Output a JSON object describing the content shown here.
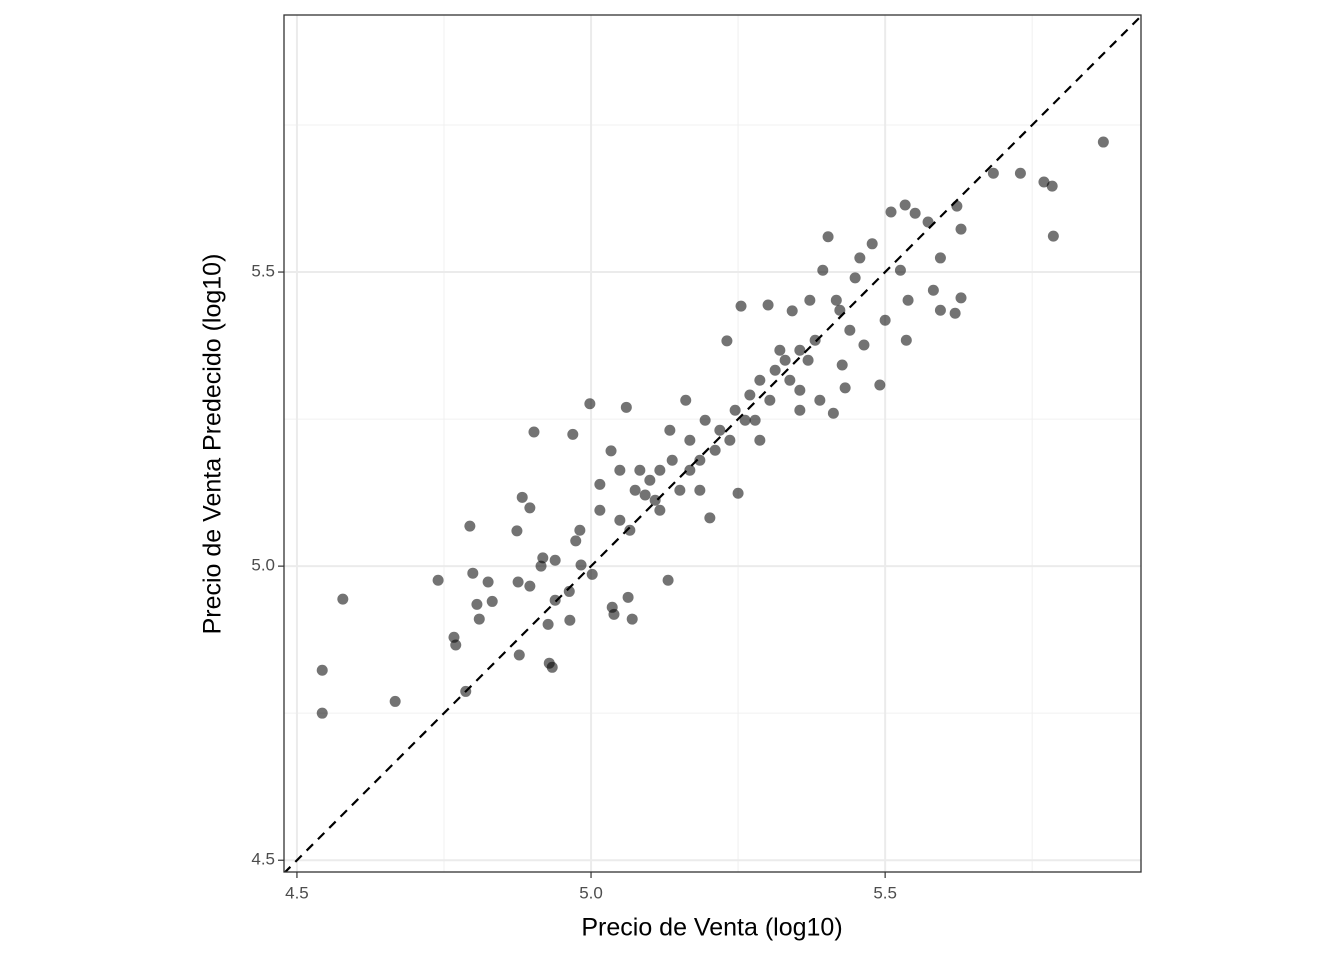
{
  "chart_data": {
    "type": "scatter",
    "x_label": "Precio de Venta (log10)",
    "y_label": "Precio de Venta Predecido (log10)",
    "xlim": [
      4.478,
      5.935
    ],
    "ylim": [
      4.48,
      5.937
    ],
    "xticks": [
      4.5,
      {
        "value": 5,
        "label": "5.0"
      },
      5.5
    ],
    "yticks": [
      4.5,
      {
        "value": 5,
        "label": "5.0"
      },
      5.5
    ],
    "xminorticks": [
      4.75,
      5.25,
      5.75
    ],
    "yminorticks": [
      4.75,
      5.25,
      5.75
    ],
    "grid": true,
    "color": "#000000",
    "opacity": 0.55,
    "abline": {
      "intercept": 0,
      "slope": 1,
      "style": "dashed"
    },
    "x": [
      4.543,
      4.543,
      4.578,
      4.667,
      4.74,
      4.767,
      4.77,
      4.787,
      4.794,
      4.799,
      4.806,
      4.81,
      4.825,
      4.832,
      4.874,
      4.876,
      4.878,
      4.883,
      4.896,
      4.903,
      4.896,
      4.915,
      4.918,
      4.927,
      4.929,
      4.934,
      4.939,
      4.939,
      4.963,
      4.964,
      4.969,
      4.974,
      4.983,
      4.998,
      5.002,
      5.015,
      5.034,
      5.036,
      5.039,
      5.06,
      5.07,
      5.063,
      5.049,
      5.075,
      5.083,
      5.1,
      5.109,
      5.117,
      5.131,
      5.138,
      5.151,
      5.161,
      5.168,
      5.185,
      5.194,
      5.202,
      5.219,
      5.231,
      5.25,
      5.255,
      5.262,
      5.27,
      5.287,
      5.301,
      5.313,
      5.321,
      5.338,
      5.342,
      5.355,
      5.369,
      5.381,
      5.389,
      5.394,
      5.403,
      5.412,
      5.417,
      5.427,
      5.432,
      5.44,
      5.449,
      5.457,
      5.464,
      5.478,
      5.491,
      5.5,
      5.51,
      5.526,
      5.534,
      5.539,
      5.536,
      5.551,
      5.573,
      5.582,
      5.594,
      5.594,
      5.619,
      5.622,
      5.629,
      5.629,
      5.684,
      5.73,
      5.77,
      5.784,
      5.786,
      5.871,
      5.092,
      5.117,
      5.168,
      5.185,
      5.211,
      5.245,
      5.279,
      5.287,
      5.304,
      5.33,
      5.355,
      5.049,
      5.066,
      5.015,
      4.981,
      5.134,
      5.236,
      5.355,
      5.423,
      5.372
    ],
    "values": [
      4.823,
      4.75,
      4.944,
      4.77,
      4.976,
      4.879,
      4.866,
      4.787,
      5.068,
      4.988,
      4.935,
      4.91,
      4.973,
      4.94,
      5.06,
      4.973,
      4.849,
      5.117,
      5.099,
      5.228,
      4.966,
      5.0,
      5.014,
      4.901,
      4.835,
      4.828,
      4.942,
      5.01,
      4.957,
      4.908,
      5.224,
      5.043,
      5.002,
      5.276,
      4.986,
      5.139,
      5.196,
      4.93,
      4.918,
      5.27,
      4.91,
      4.947,
      5.078,
      5.129,
      5.163,
      5.146,
      5.112,
      5.163,
      4.976,
      5.18,
      5.129,
      5.282,
      5.214,
      5.18,
      5.248,
      5.082,
      5.231,
      5.383,
      5.124,
      5.442,
      5.248,
      5.291,
      5.214,
      5.444,
      5.333,
      5.367,
      5.316,
      5.434,
      5.299,
      5.35,
      5.384,
      5.282,
      5.503,
      5.56,
      5.26,
      5.452,
      5.342,
      5.303,
      5.401,
      5.49,
      5.524,
      5.376,
      5.548,
      5.308,
      5.418,
      5.602,
      5.503,
      5.614,
      5.452,
      5.384,
      5.6,
      5.585,
      5.469,
      5.524,
      5.435,
      5.43,
      5.612,
      5.573,
      5.456,
      5.668,
      5.668,
      5.653,
      5.646,
      5.561,
      5.721,
      5.121,
      5.095,
      5.163,
      5.129,
      5.197,
      5.265,
      5.248,
      5.316,
      5.282,
      5.35,
      5.367,
      5.163,
      5.061,
      5.095,
      5.061,
      5.231,
      5.214,
      5.265,
      5.435,
      5.452
    ]
  }
}
